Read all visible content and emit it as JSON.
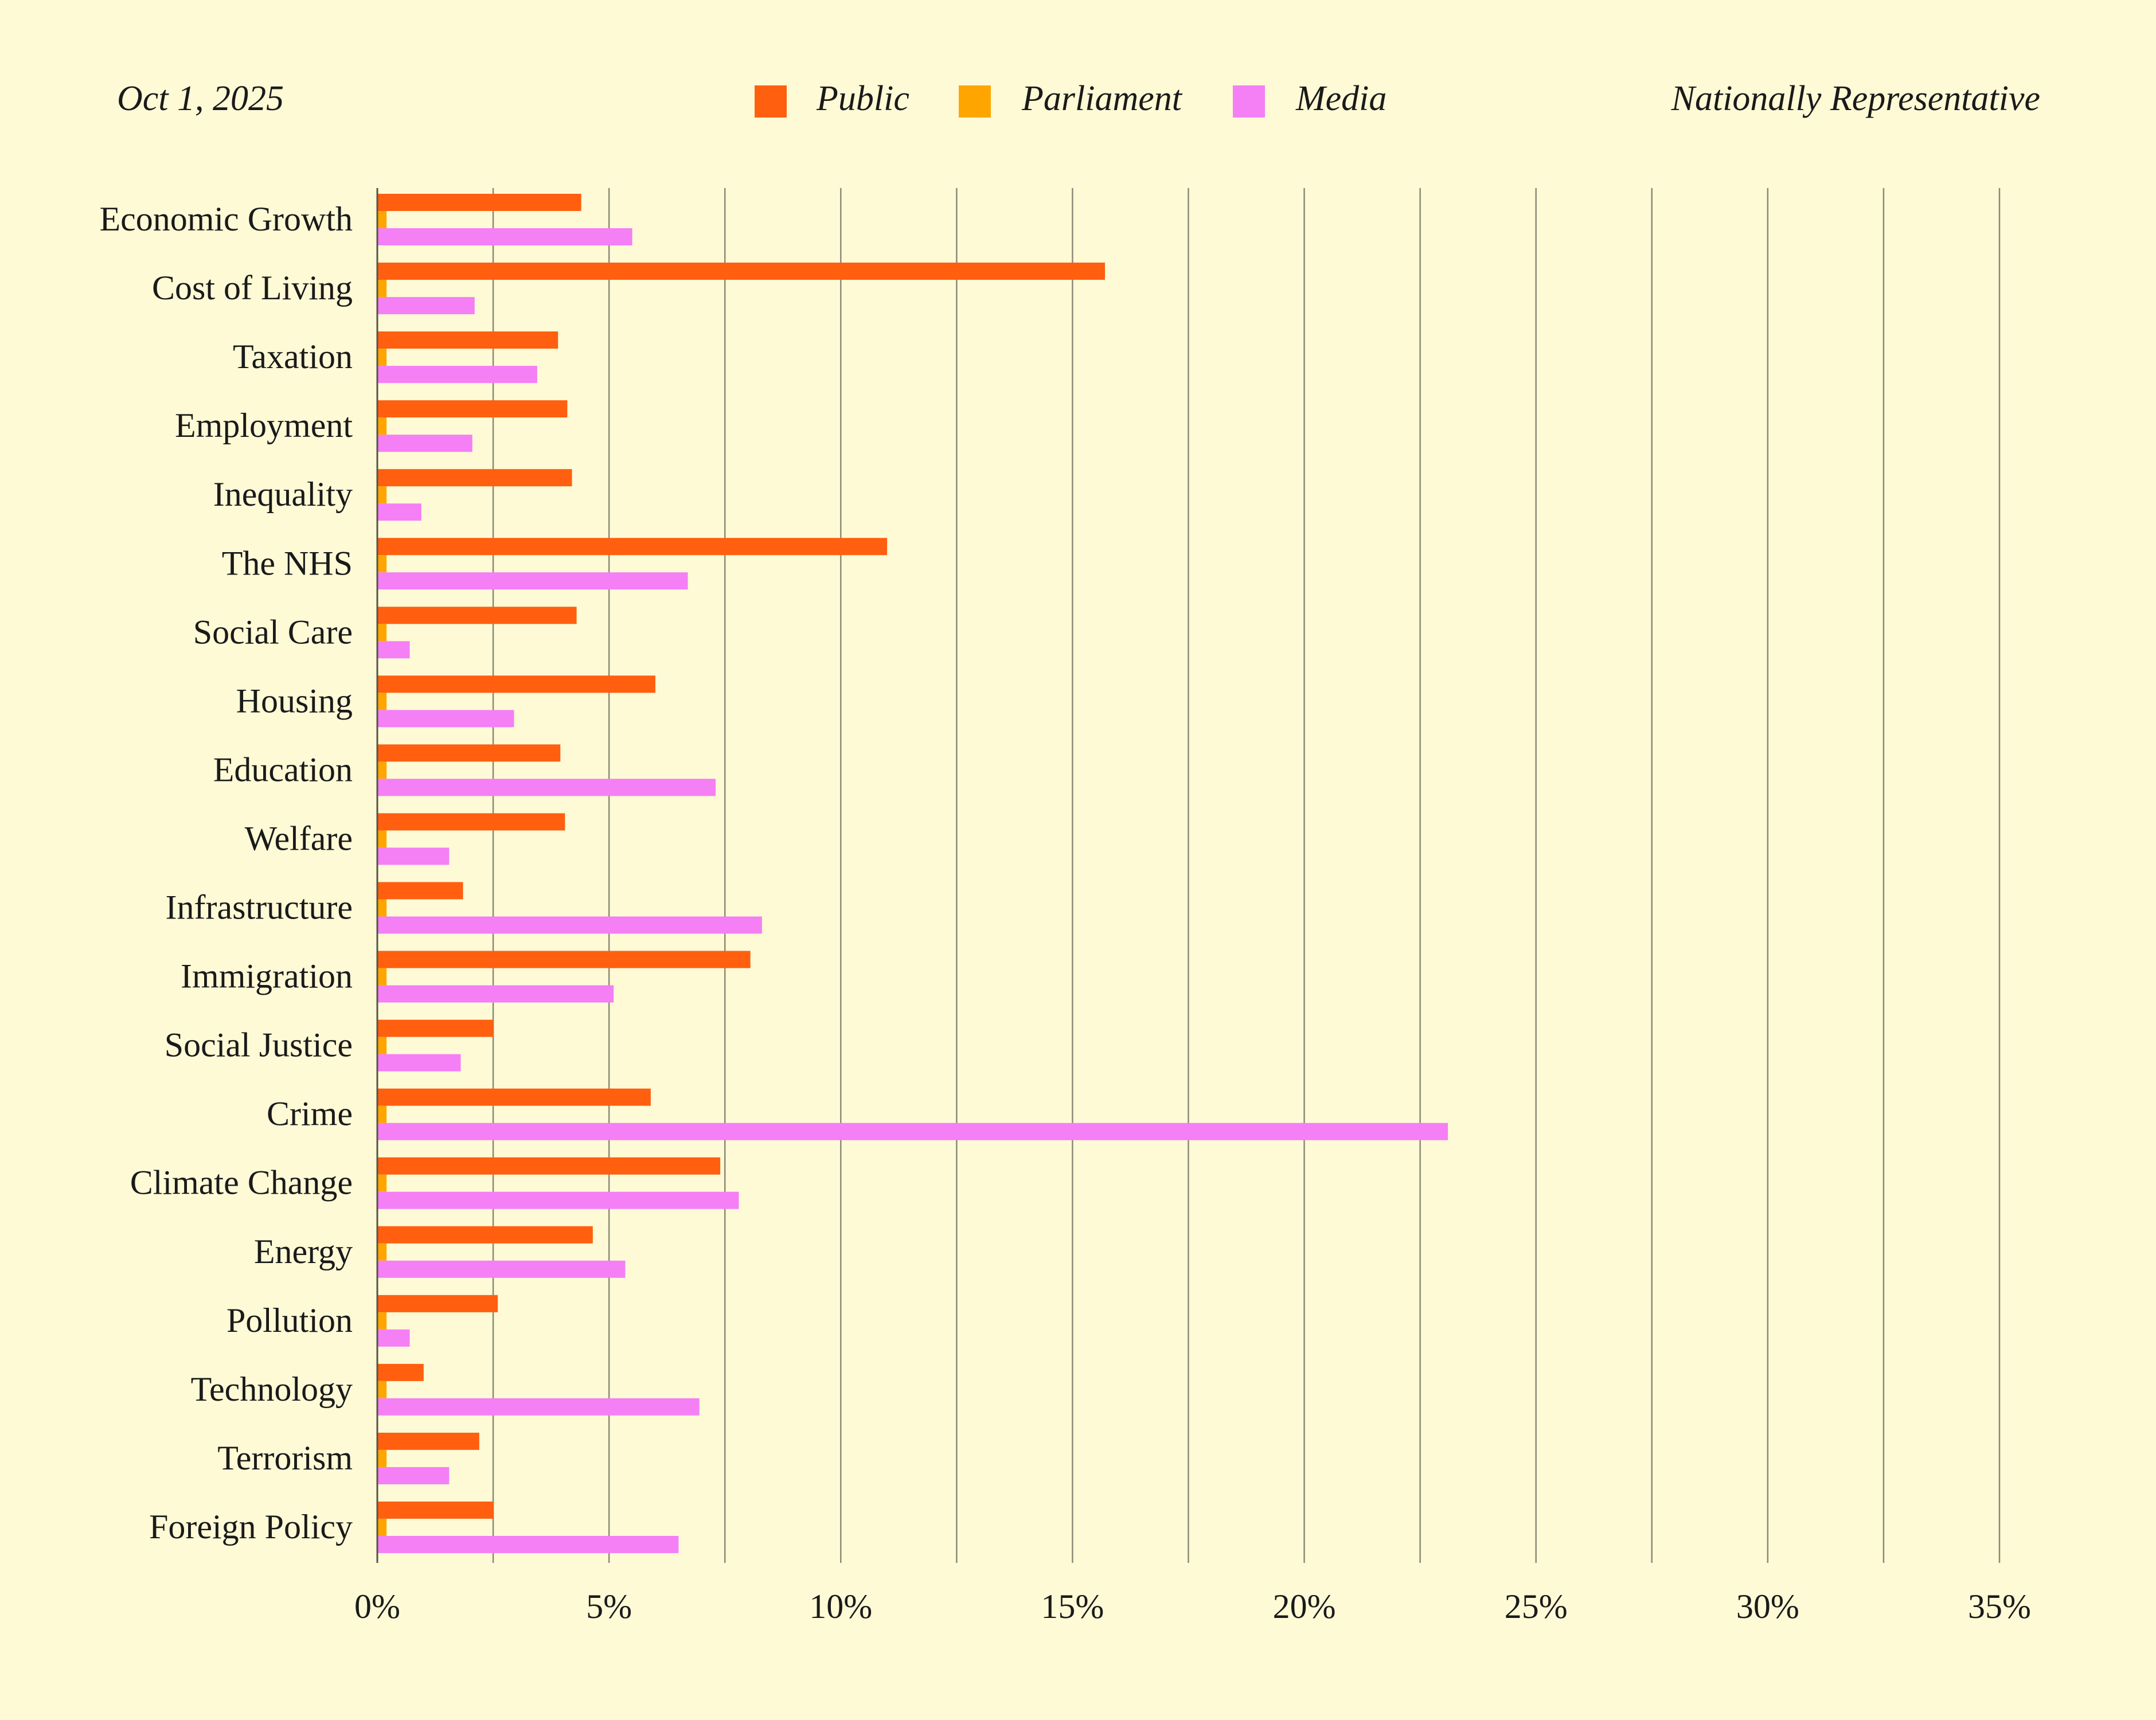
{
  "header": {
    "date": "Oct 1, 2025",
    "sample": "Nationally Representative"
  },
  "colors": {
    "background": "#fefad6",
    "public": "#ff5f0f",
    "parliament": "#ffa500",
    "media": "#f57ff5"
  },
  "chart_data": {
    "type": "bar",
    "orientation": "horizontal",
    "categories": [
      "Economic Growth",
      "Cost of Living",
      "Taxation",
      "Employment",
      "Inequality",
      "The NHS",
      "Social Care",
      "Housing",
      "Education",
      "Welfare",
      "Infrastructure",
      "Immigration",
      "Social Justice",
      "Crime",
      "Climate Change",
      "Energy",
      "Pollution",
      "Technology",
      "Terrorism",
      "Foreign Policy"
    ],
    "series": [
      {
        "name": "Public",
        "color": "#ff5f0f",
        "values": [
          4.4,
          15.7,
          3.9,
          4.1,
          4.2,
          11.0,
          4.3,
          6.0,
          3.95,
          4.05,
          1.85,
          8.05,
          2.5,
          5.9,
          7.4,
          4.65,
          2.6,
          1.0,
          2.2,
          2.5
        ]
      },
      {
        "name": "Parliament",
        "color": "#ffa500",
        "values": [
          0.2,
          0.2,
          0.2,
          0.2,
          0.2,
          0.2,
          0.2,
          0.2,
          0.2,
          0.2,
          0.2,
          0.2,
          0.2,
          0.2,
          0.2,
          0.2,
          0.2,
          0.2,
          0.2,
          0.2
        ]
      },
      {
        "name": "Media",
        "color": "#f57ff5",
        "values": [
          5.5,
          2.1,
          3.45,
          2.05,
          0.95,
          6.7,
          0.7,
          2.95,
          7.3,
          1.55,
          8.3,
          5.1,
          1.8,
          23.1,
          7.8,
          5.35,
          0.7,
          6.95,
          1.55,
          6.5
        ]
      }
    ],
    "xlim": [
      0,
      35
    ],
    "xticks": [
      0,
      5,
      10,
      15,
      20,
      25,
      30,
      35
    ],
    "tick_labels": [
      "0%",
      "5%",
      "10%",
      "15%",
      "20%",
      "25%",
      "30%",
      "35%"
    ],
    "grid": true,
    "legend_position": "top-center"
  }
}
